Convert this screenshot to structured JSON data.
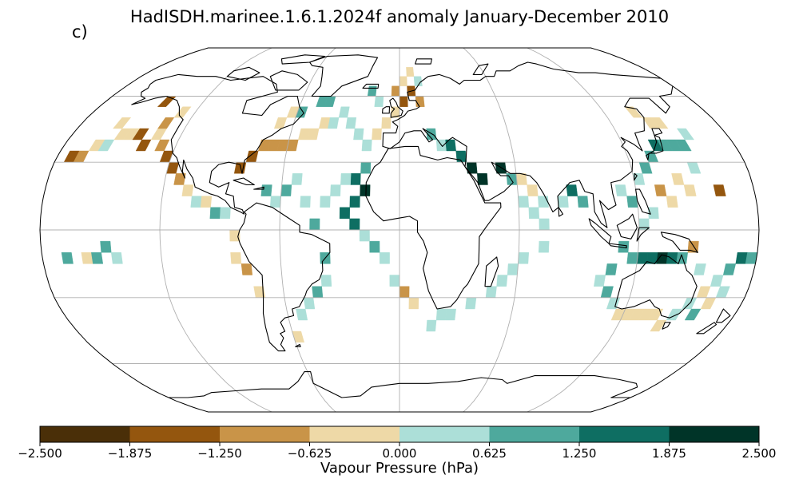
{
  "title": "HadISDH.marinee.1.6.1.2024f anomaly January-December 2010",
  "panel_label": "c)",
  "colorbar": {
    "label": "Vapour Pressure (hPa)",
    "ticks": [
      "−2.500",
      "−1.875",
      "−1.250",
      "−0.625",
      "0.000",
      "0.625",
      "1.250",
      "1.875",
      "2.500"
    ],
    "tick_values": [
      -2.5,
      -1.875,
      -1.25,
      -0.625,
      0,
      0.625,
      1.25,
      1.875,
      2.5
    ],
    "colors": [
      "#4a2f08",
      "#94560e",
      "#c99448",
      "#eed9a7",
      "#acdfd8",
      "#4ea99d",
      "#0e6e62",
      "#003428"
    ]
  },
  "map": {
    "projection": "robinson",
    "graticule_lon_step": 60,
    "graticule_lat_step": 30,
    "cells": [
      {
        "lon": -172.5,
        "lat": 32.5,
        "v": -1.5
      },
      {
        "lon": -167.5,
        "lat": 32.5,
        "v": -1.0
      },
      {
        "lon": -162.5,
        "lat": 37.5,
        "v": -0.3
      },
      {
        "lon": -157.5,
        "lat": 37.5,
        "v": 0.3
      },
      {
        "lon": -152.5,
        "lat": 42.5,
        "v": -0.4
      },
      {
        "lon": -147.5,
        "lat": 42.5,
        "v": -0.4
      },
      {
        "lon": -142.5,
        "lat": 42.5,
        "v": -1.4
      },
      {
        "lon": -137.5,
        "lat": 37.5,
        "v": -1.5
      },
      {
        "lon": -132.5,
        "lat": 42.5,
        "v": -0.5
      },
      {
        "lon": -127.5,
        "lat": 37.5,
        "v": -1.2
      },
      {
        "lon": -122.5,
        "lat": 32.5,
        "v": -1.8
      },
      {
        "lon": -117.5,
        "lat": 27.5,
        "v": -1.5
      },
      {
        "lon": -112.5,
        "lat": 22.5,
        "v": -0.8
      },
      {
        "lon": -107.5,
        "lat": 17.5,
        "v": -0.4
      },
      {
        "lon": -102.5,
        "lat": 12.5,
        "v": 0.4
      },
      {
        "lon": -97.5,
        "lat": 12.5,
        "v": -0.3
      },
      {
        "lon": -92.5,
        "lat": 7.5,
        "v": 0.9
      },
      {
        "lon": -87.5,
        "lat": 7.5,
        "v": 0.4
      },
      {
        "lon": -82.5,
        "lat": -2.5,
        "v": -0.3
      },
      {
        "lon": -82.5,
        "lat": -12.5,
        "v": -0.4
      },
      {
        "lon": -77.5,
        "lat": -17.5,
        "v": -1.0
      },
      {
        "lon": -72.5,
        "lat": -27.5,
        "v": -0.4
      },
      {
        "lon": -157.5,
        "lat": 47.5,
        "v": -0.3
      },
      {
        "lon": -132.5,
        "lat": 47.5,
        "v": -1.0
      },
      {
        "lon": -127.5,
        "lat": 52.5,
        "v": -0.5
      },
      {
        "lon": -142.5,
        "lat": 57.5,
        "v": -1.5
      },
      {
        "lon": -82.5,
        "lat": 27.5,
        "v": -1.6
      },
      {
        "lon": -77.5,
        "lat": 32.5,
        "v": -1.4
      },
      {
        "lon": -72.5,
        "lat": 37.5,
        "v": -1.0
      },
      {
        "lon": -67.5,
        "lat": 37.5,
        "v": -1.1
      },
      {
        "lon": -62.5,
        "lat": 37.5,
        "v": -0.9
      },
      {
        "lon": -57.5,
        "lat": 37.5,
        "v": -1.0
      },
      {
        "lon": -52.5,
        "lat": 42.5,
        "v": -0.5
      },
      {
        "lon": -47.5,
        "lat": 42.5,
        "v": -0.5
      },
      {
        "lon": -42.5,
        "lat": 47.5,
        "v": -0.4
      },
      {
        "lon": -37.5,
        "lat": 47.5,
        "v": 0.3
      },
      {
        "lon": -67.5,
        "lat": 47.5,
        "v": -0.4
      },
      {
        "lon": -62.5,
        "lat": 52.5,
        "v": -0.3
      },
      {
        "lon": -57.5,
        "lat": 52.5,
        "v": 0.9
      },
      {
        "lon": -47.5,
        "lat": 57.5,
        "v": 0.9
      },
      {
        "lon": -42.5,
        "lat": 57.5,
        "v": 0.8
      },
      {
        "lon": -32.5,
        "lat": 52.5,
        "v": 0.4
      },
      {
        "lon": -27.5,
        "lat": 47.5,
        "v": 0.5
      },
      {
        "lon": -22.5,
        "lat": 42.5,
        "v": 0.3
      },
      {
        "lon": -17.5,
        "lat": 37.5,
        "v": 0.4
      },
      {
        "lon": -12.5,
        "lat": 42.5,
        "v": -0.4
      },
      {
        "lon": -7.5,
        "lat": 47.5,
        "v": -0.4
      },
      {
        "lon": -2.5,
        "lat": 52.5,
        "v": -0.5
      },
      {
        "lon": 2.5,
        "lat": 57.5,
        "v": -1.4
      },
      {
        "lon": 7.5,
        "lat": 62.5,
        "v": -1.3
      },
      {
        "lon": 12.5,
        "lat": 57.5,
        "v": -1.2
      },
      {
        "lon": 2.5,
        "lat": 67.5,
        "v": -0.4
      },
      {
        "lon": 7.5,
        "lat": 72.5,
        "v": -0.4
      },
      {
        "lon": 12.5,
        "lat": 67.5,
        "v": 0.4
      },
      {
        "lon": -2.5,
        "lat": 62.5,
        "v": -1.0
      },
      {
        "lon": -17.5,
        "lat": 62.5,
        "v": 0.9
      },
      {
        "lon": -12.5,
        "lat": 57.5,
        "v": 0.4
      },
      {
        "lon": 17.5,
        "lat": 42.5,
        "v": 0.9
      },
      {
        "lon": 22.5,
        "lat": 37.5,
        "v": 0.4
      },
      {
        "lon": 27.5,
        "lat": 37.5,
        "v": 1.3
      },
      {
        "lon": 32.5,
        "lat": 32.5,
        "v": 1.4
      },
      {
        "lon": 37.5,
        "lat": 27.5,
        "v": 1.9
      },
      {
        "lon": 42.5,
        "lat": 22.5,
        "v": 2.1
      },
      {
        "lon": 52.5,
        "lat": 27.5,
        "v": 2.2
      },
      {
        "lon": 57.5,
        "lat": 22.5,
        "v": 0.8
      },
      {
        "lon": 62.5,
        "lat": 22.5,
        "v": -0.4
      },
      {
        "lon": 67.5,
        "lat": 17.5,
        "v": -0.6
      },
      {
        "lon": 72.5,
        "lat": 12.5,
        "v": 0.4
      },
      {
        "lon": 62.5,
        "lat": 12.5,
        "v": 0.4
      },
      {
        "lon": 67.5,
        "lat": 7.5,
        "v": 0.4
      },
      {
        "lon": 72.5,
        "lat": 2.5,
        "v": 0.5
      },
      {
        "lon": 82.5,
        "lat": 12.5,
        "v": 0.3
      },
      {
        "lon": 87.5,
        "lat": 17.5,
        "v": 1.3
      },
      {
        "lon": 92.5,
        "lat": 12.5,
        "v": 0.9
      },
      {
        "lon": 72.5,
        "lat": -7.5,
        "v": 0.4
      },
      {
        "lon": 62.5,
        "lat": -12.5,
        "v": 0.4
      },
      {
        "lon": 57.5,
        "lat": -17.5,
        "v": 0.4
      },
      {
        "lon": 52.5,
        "lat": -22.5,
        "v": 0.3
      },
      {
        "lon": 47.5,
        "lat": -27.5,
        "v": 0.4
      },
      {
        "lon": 37.5,
        "lat": -32.5,
        "v": 0.4
      },
      {
        "lon": 27.5,
        "lat": -37.5,
        "v": 0.4
      },
      {
        "lon": 22.5,
        "lat": -37.5,
        "v": 0.5
      },
      {
        "lon": 17.5,
        "lat": -42.5,
        "v": 0.4
      },
      {
        "lon": 7.5,
        "lat": -32.5,
        "v": -0.4
      },
      {
        "lon": 2.5,
        "lat": -27.5,
        "v": -1.0
      },
      {
        "lon": -2.5,
        "lat": -22.5,
        "v": 0.4
      },
      {
        "lon": -7.5,
        "lat": -12.5,
        "v": 0.4
      },
      {
        "lon": -12.5,
        "lat": -7.5,
        "v": 0.8
      },
      {
        "lon": -17.5,
        "lat": -2.5,
        "v": 0.4
      },
      {
        "lon": -22.5,
        "lat": 2.5,
        "v": 1.4
      },
      {
        "lon": -27.5,
        "lat": 7.5,
        "v": 1.3
      },
      {
        "lon": -22.5,
        "lat": 12.5,
        "v": 1.8
      },
      {
        "lon": -17.5,
        "lat": 17.5,
        "v": 1.9
      },
      {
        "lon": -22.5,
        "lat": 22.5,
        "v": 1.4
      },
      {
        "lon": -17.5,
        "lat": 27.5,
        "v": 0.9
      },
      {
        "lon": -27.5,
        "lat": 22.5,
        "v": 0.4
      },
      {
        "lon": -32.5,
        "lat": 17.5,
        "v": 0.4
      },
      {
        "lon": -37.5,
        "lat": 12.5,
        "v": 0.4
      },
      {
        "lon": -37.5,
        "lat": -12.5,
        "v": 0.8
      },
      {
        "lon": -37.5,
        "lat": -22.5,
        "v": 0.4
      },
      {
        "lon": -42.5,
        "lat": -27.5,
        "v": 0.9
      },
      {
        "lon": -47.5,
        "lat": -32.5,
        "v": 0.4
      },
      {
        "lon": -52.5,
        "lat": -37.5,
        "v": 0.4
      },
      {
        "lon": -57.5,
        "lat": -47.5,
        "v": -0.4
      },
      {
        "lon": -57.5,
        "lat": 17.5,
        "v": 0.8
      },
      {
        "lon": -62.5,
        "lat": 12.5,
        "v": 0.4
      },
      {
        "lon": -67.5,
        "lat": 17.5,
        "v": 0.8
      },
      {
        "lon": -52.5,
        "lat": 22.5,
        "v": 0.4
      },
      {
        "lon": -47.5,
        "lat": 12.5,
        "v": 0.4
      },
      {
        "lon": -42.5,
        "lat": 2.5,
        "v": 0.8
      },
      {
        "lon": 112.5,
        "lat": 17.5,
        "v": 0.5
      },
      {
        "lon": 117.5,
        "lat": 12.5,
        "v": 0.8
      },
      {
        "lon": 122.5,
        "lat": 22.5,
        "v": 0.4
      },
      {
        "lon": 127.5,
        "lat": 27.5,
        "v": 0.8
      },
      {
        "lon": 132.5,
        "lat": 32.5,
        "v": 0.9
      },
      {
        "lon": 137.5,
        "lat": 37.5,
        "v": 1.4
      },
      {
        "lon": 142.5,
        "lat": 37.5,
        "v": 1.0
      },
      {
        "lon": 147.5,
        "lat": 37.5,
        "v": 0.9
      },
      {
        "lon": 152.5,
        "lat": 37.5,
        "v": 0.9
      },
      {
        "lon": 157.5,
        "lat": 42.5,
        "v": 0.4
      },
      {
        "lon": 142.5,
        "lat": 47.5,
        "v": -0.4
      },
      {
        "lon": 147.5,
        "lat": 47.5,
        "v": -0.4
      },
      {
        "lon": 137.5,
        "lat": 52.5,
        "v": -0.4
      },
      {
        "lon": 152.5,
        "lat": 27.5,
        "v": 0.4
      },
      {
        "lon": 142.5,
        "lat": 22.5,
        "v": -0.4
      },
      {
        "lon": 132.5,
        "lat": 17.5,
        "v": -1.0
      },
      {
        "lon": 137.5,
        "lat": 12.5,
        "v": -0.4
      },
      {
        "lon": 147.5,
        "lat": 17.5,
        "v": -0.4
      },
      {
        "lon": 162.5,
        "lat": 17.5,
        "v": -1.7
      },
      {
        "lon": 127.5,
        "lat": 7.5,
        "v": 0.4
      },
      {
        "lon": 122.5,
        "lat": 2.5,
        "v": 0.4
      },
      {
        "lon": 112.5,
        "lat": -7.5,
        "v": 0.9
      },
      {
        "lon": 117.5,
        "lat": -12.5,
        "v": 0.9
      },
      {
        "lon": 122.5,
        "lat": -12.5,
        "v": 1.4
      },
      {
        "lon": 127.5,
        "lat": -12.5,
        "v": 1.3
      },
      {
        "lon": 132.5,
        "lat": -12.5,
        "v": 1.9
      },
      {
        "lon": 137.5,
        "lat": -12.5,
        "v": 1.8
      },
      {
        "lon": 142.5,
        "lat": -12.5,
        "v": 0.9
      },
      {
        "lon": 147.5,
        "lat": -7.5,
        "v": -1.2
      },
      {
        "lon": 152.5,
        "lat": -17.5,
        "v": 0.4
      },
      {
        "lon": 157.5,
        "lat": -27.5,
        "v": -0.4
      },
      {
        "lon": 162.5,
        "lat": -22.5,
        "v": 0.4
      },
      {
        "lon": 167.5,
        "lat": -17.5,
        "v": 0.9
      },
      {
        "lon": 172.5,
        "lat": -12.5,
        "v": 1.3
      },
      {
        "lon": 177.5,
        "lat": -12.5,
        "v": 0.8
      },
      {
        "lon": 107.5,
        "lat": -17.5,
        "v": 0.9
      },
      {
        "lon": 102.5,
        "lat": -22.5,
        "v": 0.4
      },
      {
        "lon": 107.5,
        "lat": -27.5,
        "v": 0.8
      },
      {
        "lon": 112.5,
        "lat": -32.5,
        "v": 0.4
      },
      {
        "lon": 117.5,
        "lat": -37.5,
        "v": -0.4
      },
      {
        "lon": 122.5,
        "lat": -37.5,
        "v": -0.5
      },
      {
        "lon": 127.5,
        "lat": -37.5,
        "v": -0.4
      },
      {
        "lon": 132.5,
        "lat": -37.5,
        "v": -0.4
      },
      {
        "lon": 137.5,
        "lat": -37.5,
        "v": -0.3
      },
      {
        "lon": 147.5,
        "lat": -37.5,
        "v": 0.4
      },
      {
        "lon": 152.5,
        "lat": -32.5,
        "v": 0.4
      },
      {
        "lon": 157.5,
        "lat": -37.5,
        "v": 0.8
      },
      {
        "lon": 162.5,
        "lat": -32.5,
        "v": -0.4
      },
      {
        "lon": 167.5,
        "lat": -27.5,
        "v": 0.4
      },
      {
        "lon": 142.5,
        "lat": -42.5,
        "v": -0.4
      },
      {
        "lon": -167.5,
        "lat": -12.5,
        "v": 0.9
      },
      {
        "lon": -157.5,
        "lat": -12.5,
        "v": -0.4
      },
      {
        "lon": -152.5,
        "lat": -12.5,
        "v": 0.9
      },
      {
        "lon": -147.5,
        "lat": -7.5,
        "v": 0.8
      },
      {
        "lon": -142.5,
        "lat": -12.5,
        "v": 0.4
      }
    ]
  }
}
